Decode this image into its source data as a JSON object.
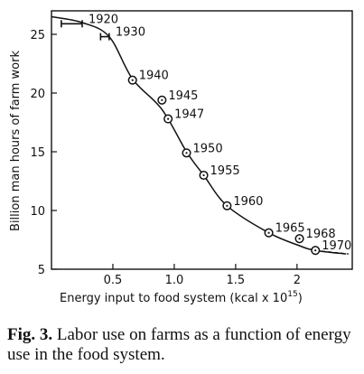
{
  "chart_data": {
    "type": "scatter",
    "xlabel": "Energy input to food system (kcal x 10",
    "xlabel_exponent": "15",
    "xlabel_close": ")",
    "ylabel": "Billion man hours of farm work",
    "xlim": [
      0,
      2.45
    ],
    "ylim": [
      5,
      27
    ],
    "xticks": [
      0.5,
      1.0,
      1.5,
      2.0
    ],
    "xtick_labels": [
      "0.5",
      "1.0",
      "1.5",
      "2"
    ],
    "yticks": [
      5,
      10,
      15,
      20,
      25
    ],
    "ytick_labels": [
      "5",
      "10",
      "15",
      "20",
      "25"
    ],
    "points": [
      {
        "label": "1920",
        "x": 0.25,
        "y": 25.9,
        "marker": "errorbar",
        "xerr": [
          0.08,
          0.25
        ]
      },
      {
        "label": "1930",
        "x": 0.47,
        "y": 24.8,
        "marker": "errorbar",
        "xerr": [
          0.4,
          0.47
        ]
      },
      {
        "label": "1940",
        "x": 0.66,
        "y": 21.1,
        "marker": "circle"
      },
      {
        "label": "1945",
        "x": 0.9,
        "y": 19.4,
        "marker": "circle"
      },
      {
        "label": "1947",
        "x": 0.95,
        "y": 17.8,
        "marker": "circle"
      },
      {
        "label": "1950",
        "x": 1.1,
        "y": 14.9,
        "marker": "circle"
      },
      {
        "label": "1955",
        "x": 1.24,
        "y": 13.0,
        "marker": "circle"
      },
      {
        "label": "1960",
        "x": 1.43,
        "y": 10.4,
        "marker": "circle"
      },
      {
        "label": "1965",
        "x": 1.77,
        "y": 8.1,
        "marker": "circle"
      },
      {
        "label": "1968",
        "x": 2.02,
        "y": 7.6,
        "marker": "circle"
      },
      {
        "label": "1970",
        "x": 2.15,
        "y": 6.6,
        "marker": "circle"
      }
    ],
    "trend_curve": [
      [
        0.0,
        26.5
      ],
      [
        0.25,
        26.0
      ],
      [
        0.47,
        24.8
      ],
      [
        0.66,
        21.2
      ],
      [
        0.9,
        18.6
      ],
      [
        1.1,
        15.0
      ],
      [
        1.24,
        13.0
      ],
      [
        1.43,
        10.4
      ],
      [
        1.77,
        8.1
      ],
      [
        2.02,
        7.0
      ],
      [
        2.15,
        6.6
      ],
      [
        2.4,
        6.3
      ]
    ],
    "dashed_tail": [
      [
        2.15,
        6.6
      ],
      [
        2.42,
        6.3
      ]
    ],
    "grid": false
  },
  "caption": {
    "label": "Fig. 3.",
    "text": "Labor use on farms as a function of energy use in the food system."
  }
}
